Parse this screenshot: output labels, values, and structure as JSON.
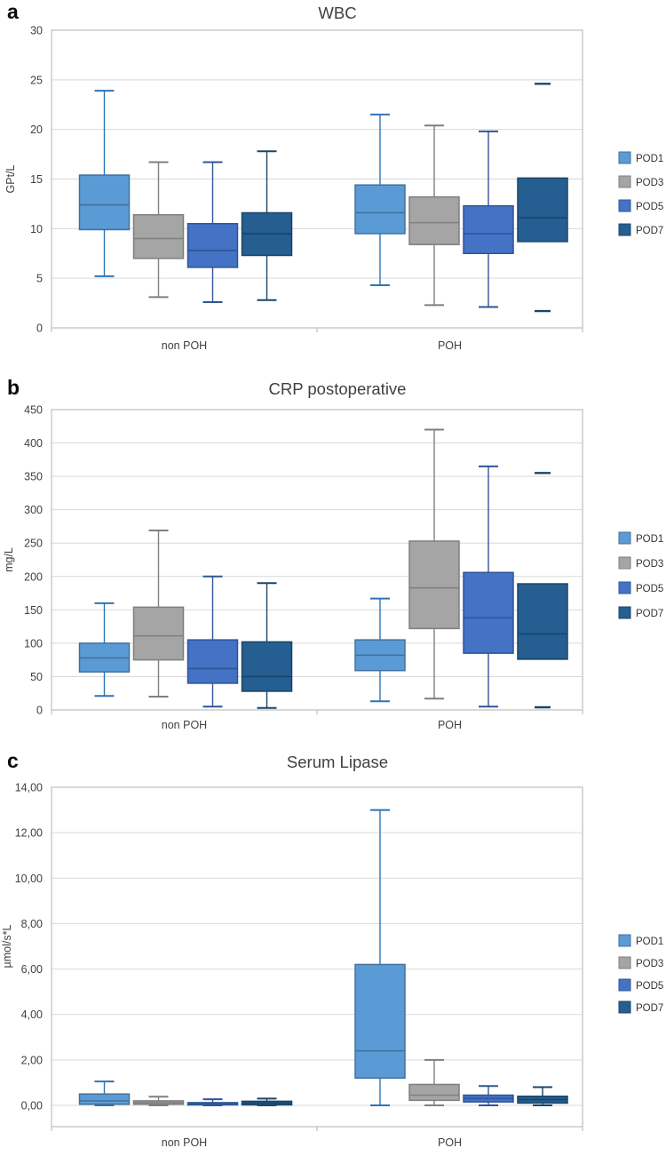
{
  "figure": {
    "background": "#ffffff",
    "group_labels": [
      "non POH",
      "POH"
    ],
    "legend_labels": [
      "POD1",
      "POD3",
      "POD5",
      "POD7"
    ]
  },
  "series_styles": [
    {
      "name": "POD1",
      "fill": "#5B9BD5",
      "edge": "#41719C",
      "whisker": "#2E74B5"
    },
    {
      "name": "POD3",
      "fill": "#A5A5A5",
      "edge": "#7F7F7F",
      "whisker": "#7F7F7F"
    },
    {
      "name": "POD5",
      "fill": "#4472C4",
      "edge": "#2F5597",
      "whisker": "#2F5597"
    },
    {
      "name": "POD7",
      "fill": "#255E91",
      "edge": "#1C4467",
      "whisker": "#1C4467"
    }
  ],
  "chart_data": [
    {
      "type": "box",
      "panel_letter": "a",
      "title": "WBC",
      "ylabel": "GPt/L",
      "ylim": [
        0,
        30
      ],
      "ytick_values": [
        0,
        5,
        10,
        15,
        20,
        25,
        30
      ],
      "ytick_labels": [
        "0",
        "5",
        "10",
        "15",
        "20",
        "25",
        "30"
      ],
      "categories": [
        "non POH",
        "POH"
      ],
      "grid": true,
      "legend_position": "right",
      "series": [
        {
          "name": "POD1",
          "boxes": [
            {
              "min": 5.2,
              "q1": 9.9,
              "median": 12.4,
              "q3": 15.4,
              "max": 23.9
            },
            {
              "min": 4.3,
              "q1": 9.5,
              "median": 11.6,
              "q3": 14.4,
              "max": 21.5
            }
          ]
        },
        {
          "name": "POD3",
          "boxes": [
            {
              "min": 3.1,
              "q1": 7.0,
              "median": 9.0,
              "q3": 11.4,
              "max": 16.7
            },
            {
              "min": 2.3,
              "q1": 8.4,
              "median": 10.6,
              "q3": 13.2,
              "max": 20.4
            }
          ]
        },
        {
          "name": "POD5",
          "boxes": [
            {
              "min": 2.6,
              "q1": 6.1,
              "median": 7.8,
              "q3": 10.5,
              "max": 16.7
            },
            {
              "min": 2.1,
              "q1": 7.5,
              "median": 9.5,
              "q3": 12.3,
              "max": 19.8
            }
          ]
        },
        {
          "name": "POD7",
          "boxes": [
            {
              "min": 2.8,
              "q1": 7.3,
              "median": 9.5,
              "q3": 11.6,
              "max": 17.8
            },
            {
              "min": 1.7,
              "q1": 8.7,
              "median": 11.1,
              "q3": 15.1,
              "max": 24.6,
              "caps_only": true
            }
          ]
        }
      ]
    },
    {
      "type": "box",
      "panel_letter": "b",
      "title": "CRP postoperative",
      "ylabel": "mg/L",
      "ylim": [
        0,
        450
      ],
      "ytick_values": [
        0,
        50,
        100,
        150,
        200,
        250,
        300,
        350,
        400,
        450
      ],
      "ytick_labels": [
        "0",
        "50",
        "100",
        "150",
        "200",
        "250",
        "300",
        "350",
        "400",
        "450"
      ],
      "categories": [
        "non POH",
        "POH"
      ],
      "grid": true,
      "legend_position": "right",
      "series": [
        {
          "name": "POD1",
          "boxes": [
            {
              "min": 21,
              "q1": 57,
              "median": 78,
              "q3": 100,
              "max": 160
            },
            {
              "min": 13,
              "q1": 59,
              "median": 82,
              "q3": 105,
              "max": 167
            }
          ]
        },
        {
          "name": "POD3",
          "boxes": [
            {
              "min": 20,
              "q1": 75,
              "median": 111,
              "q3": 154,
              "max": 269
            },
            {
              "min": 17,
              "q1": 122,
              "median": 183,
              "q3": 253,
              "max": 420
            }
          ]
        },
        {
          "name": "POD5",
          "boxes": [
            {
              "min": 5,
              "q1": 40,
              "median": 62,
              "q3": 105,
              "max": 200
            },
            {
              "min": 5,
              "q1": 85,
              "median": 138,
              "q3": 206,
              "max": 365
            }
          ]
        },
        {
          "name": "POD7",
          "boxes": [
            {
              "min": 3,
              "q1": 28,
              "median": 50,
              "q3": 102,
              "max": 190
            },
            {
              "min": 4,
              "q1": 76,
              "median": 114,
              "q3": 189,
              "max": 355,
              "caps_only": true
            }
          ]
        }
      ]
    },
    {
      "type": "box",
      "panel_letter": "c",
      "title": "Serum Lipase",
      "ylabel": "µmol/s*L",
      "ylim": [
        0,
        14
      ],
      "ytick_values": [
        0,
        2,
        4,
        6,
        8,
        10,
        12,
        14
      ],
      "ytick_labels": [
        "0,00",
        "2,00",
        "4,00",
        "6,00",
        "8,00",
        "10,00",
        "12,00",
        "14,00"
      ],
      "categories": [
        "non POH",
        "POH"
      ],
      "grid": true,
      "legend_position": "right",
      "series": [
        {
          "name": "POD1",
          "boxes": [
            {
              "min": 0.0,
              "q1": 0.05,
              "median": 0.2,
              "q3": 0.5,
              "max": 1.05
            },
            {
              "min": 0.0,
              "q1": 1.2,
              "median": 2.4,
              "q3": 6.2,
              "max": 13.0
            }
          ]
        },
        {
          "name": "POD3",
          "boxes": [
            {
              "min": 0.0,
              "q1": 0.05,
              "median": 0.12,
              "q3": 0.2,
              "max": 0.38
            },
            {
              "min": 0.0,
              "q1": 0.22,
              "median": 0.45,
              "q3": 0.92,
              "max": 2.0
            }
          ]
        },
        {
          "name": "POD5",
          "boxes": [
            {
              "min": 0.0,
              "q1": 0.02,
              "median": 0.08,
              "q3": 0.12,
              "max": 0.27
            },
            {
              "min": 0.0,
              "q1": 0.15,
              "median": 0.3,
              "q3": 0.45,
              "max": 0.85
            }
          ]
        },
        {
          "name": "POD7",
          "boxes": [
            {
              "min": 0.0,
              "q1": 0.02,
              "median": 0.1,
              "q3": 0.18,
              "max": 0.3
            },
            {
              "min": 0.0,
              "q1": 0.1,
              "median": 0.25,
              "q3": 0.4,
              "max": 0.8
            }
          ]
        }
      ]
    }
  ]
}
